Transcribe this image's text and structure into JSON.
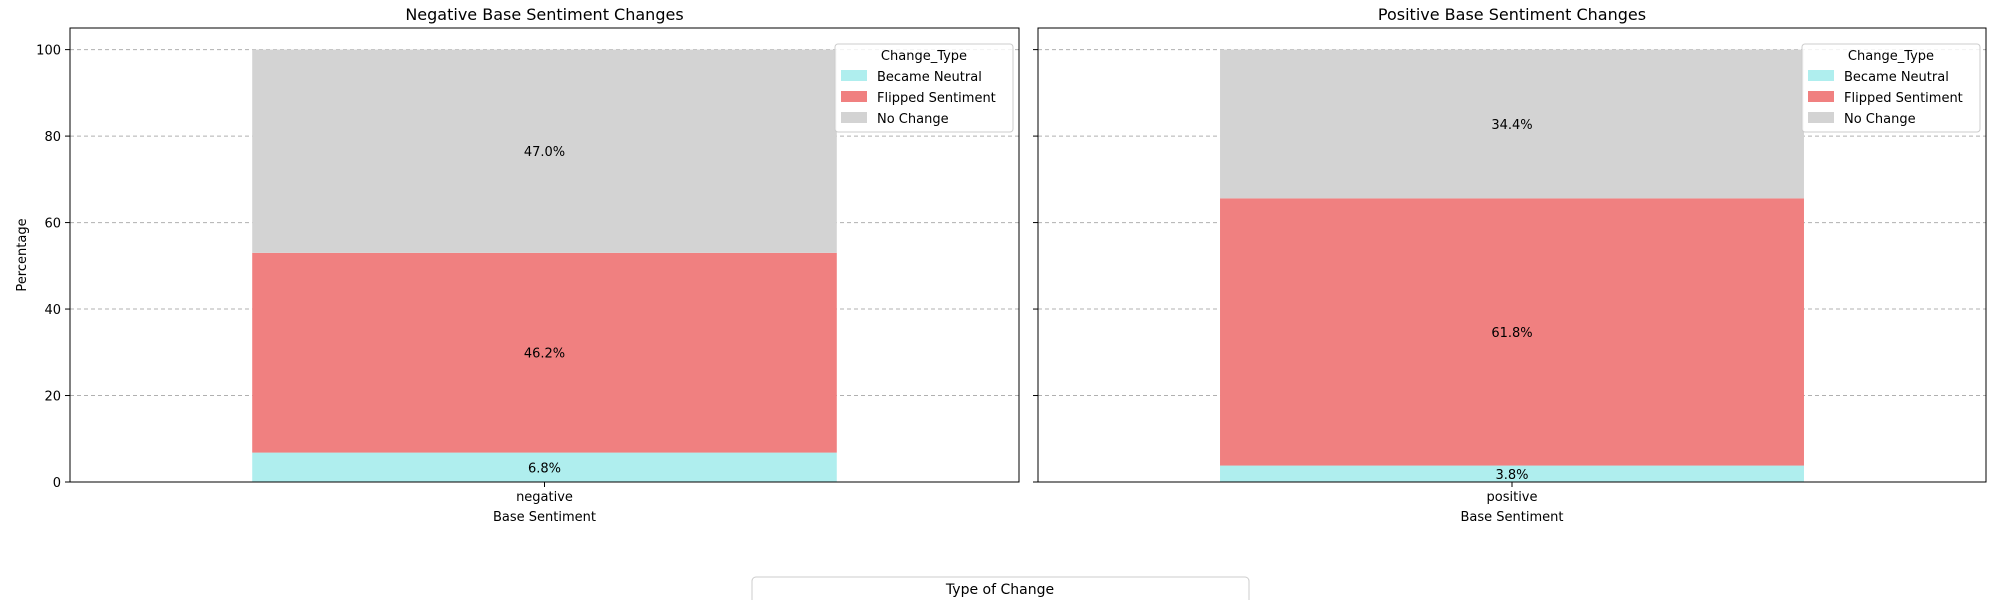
{
  "chart_data": [
    {
      "type": "bar",
      "stacked": true,
      "title": "Negative Base Sentiment Changes",
      "xlabel": "Base Sentiment",
      "ylabel": "Percentage",
      "categories": [
        "negative"
      ],
      "ylim": [
        0,
        105
      ],
      "yticks": [
        0,
        20,
        40,
        60,
        80,
        100
      ],
      "grid": "y, dashed",
      "legend": {
        "title": "Change_Type",
        "placement": "top-right"
      },
      "series": [
        {
          "name": "Became Neutral",
          "values": [
            6.8
          ],
          "label": "6.8%",
          "color": "#afeeee"
        },
        {
          "name": "Flipped Sentiment",
          "values": [
            46.2
          ],
          "label": "46.2%",
          "color": "#f08080"
        },
        {
          "name": "No Change",
          "values": [
            47.0
          ],
          "label": "47.0%",
          "color": "#d3d3d3"
        }
      ]
    },
    {
      "type": "bar",
      "stacked": true,
      "title": "Positive Base Sentiment Changes",
      "xlabel": "Base Sentiment",
      "ylabel": "",
      "categories": [
        "positive"
      ],
      "ylim": [
        0,
        105
      ],
      "yticks": [
        0,
        20,
        40,
        60,
        80,
        100
      ],
      "grid": "y, dashed",
      "legend": {
        "title": "Change_Type",
        "placement": "top-right"
      },
      "series": [
        {
          "name": "Became Neutral",
          "values": [
            3.8
          ],
          "label": "3.8%",
          "color": "#afeeee"
        },
        {
          "name": "Flipped Sentiment",
          "values": [
            61.8
          ],
          "label": "61.8%",
          "color": "#f08080"
        },
        {
          "name": "No Change",
          "values": [
            34.4
          ],
          "label": "34.4%",
          "color": "#d3d3d3"
        }
      ]
    }
  ],
  "bottom_legend": {
    "title": "Type of Change"
  }
}
